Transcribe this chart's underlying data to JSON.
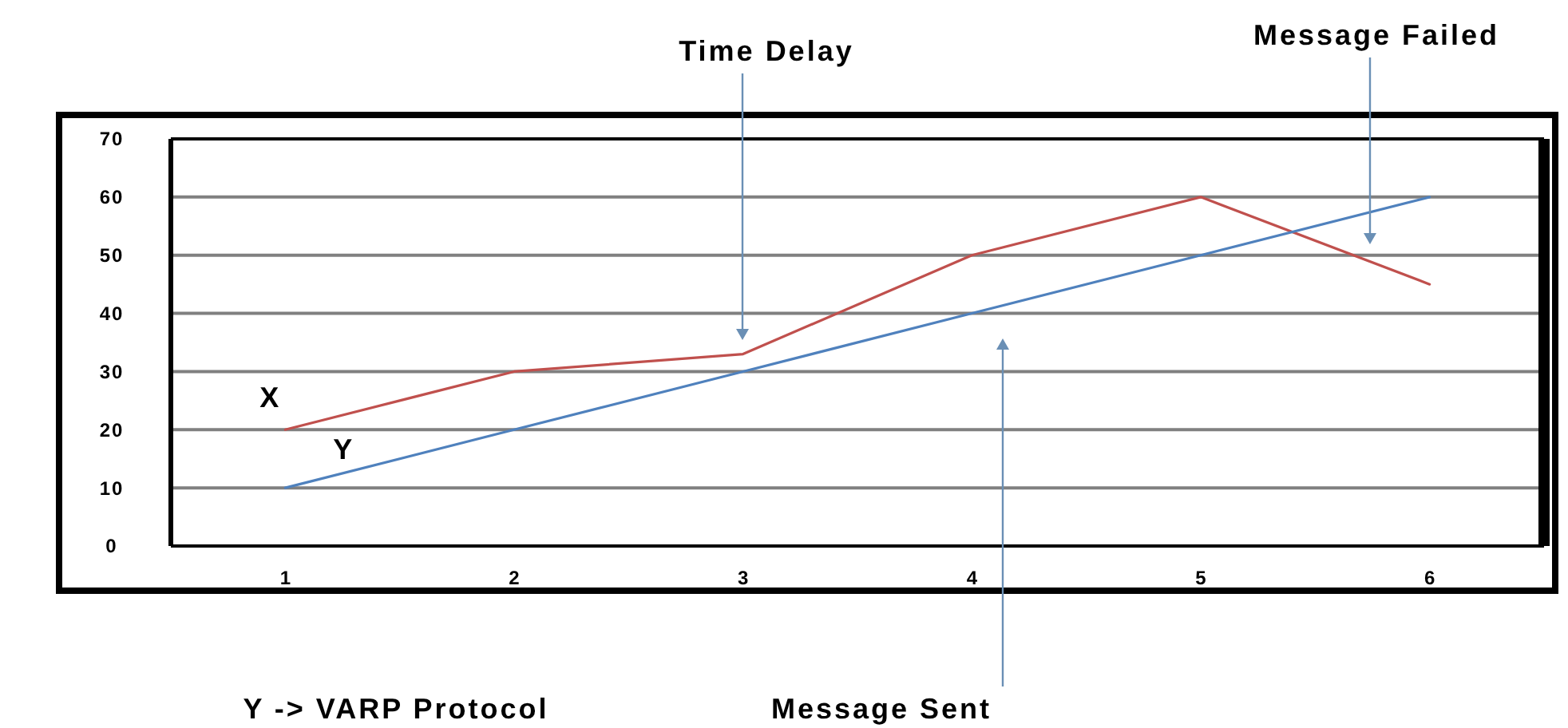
{
  "chart_data": {
    "type": "line",
    "categories": [
      "1",
      "2",
      "3",
      "4",
      "5",
      "6"
    ],
    "series": [
      {
        "name": "X",
        "color": "#c0504d",
        "values": [
          20,
          30,
          33,
          50,
          60,
          45
        ]
      },
      {
        "name": "Y",
        "color": "#4f81bd",
        "values": [
          10,
          20,
          30,
          40,
          50,
          60
        ]
      }
    ],
    "ylim": [
      0,
      70
    ],
    "yticks": [
      0,
      10,
      20,
      30,
      40,
      50,
      60,
      70
    ],
    "grid": "y",
    "marker": "none",
    "line_style": "solid",
    "annotations": [
      "Time Delay",
      "Message Failed",
      "Message Sent",
      "Y -> VARP Protocol"
    ]
  }
}
